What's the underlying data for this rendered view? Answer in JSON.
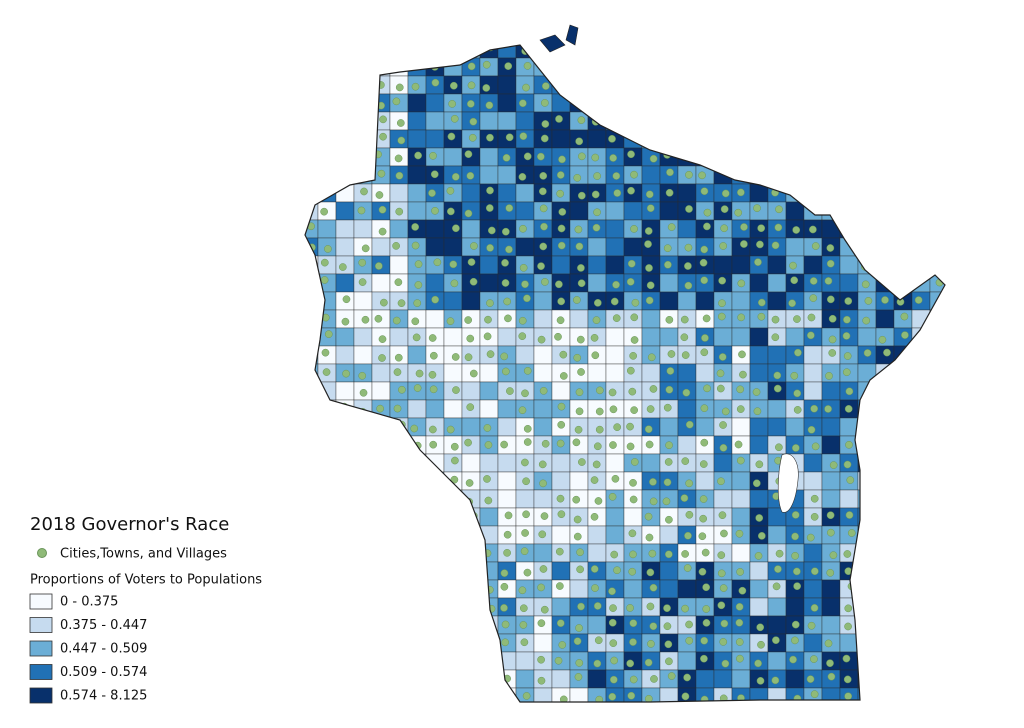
{
  "title": "2018 Governor's Race",
  "legend": {
    "points": {
      "label": "Cities,Towns, and Villages",
      "color": "#8fba78"
    },
    "classes_title": "Proportions of Voters to Populations",
    "classes": [
      {
        "label": "0 - 0.375",
        "color": "#f7fbff"
      },
      {
        "label": "0.375 - 0.447",
        "color": "#c6dbef"
      },
      {
        "label": "0.447 - 0.509",
        "color": "#6baed6"
      },
      {
        "label": "0.509 - 0.574",
        "color": "#2171b5"
      },
      {
        "label": "0.574 - 8.125",
        "color": "#08306b"
      }
    ]
  }
}
